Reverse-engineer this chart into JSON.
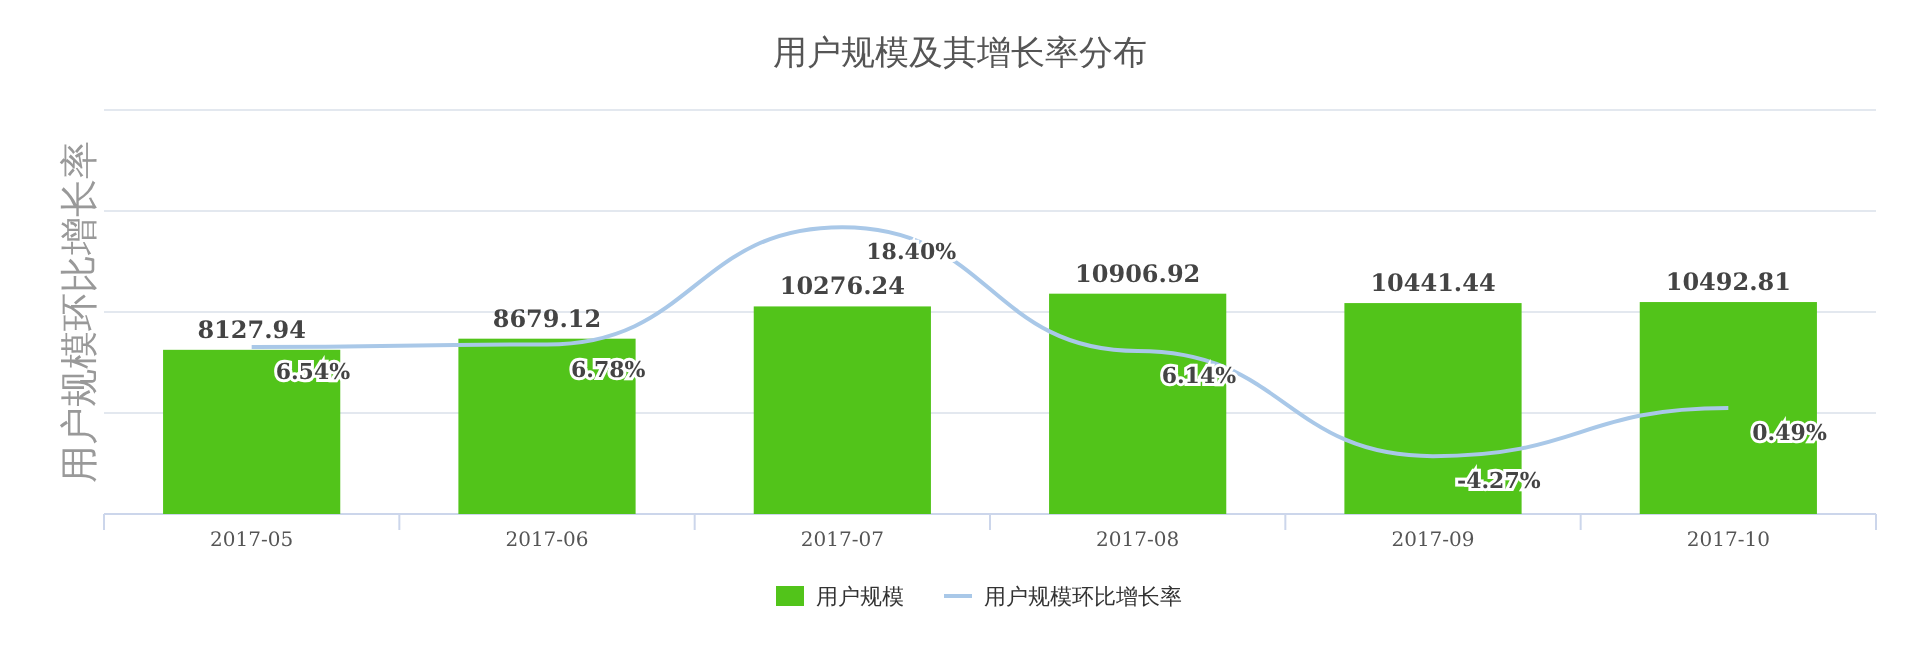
{
  "chart_data": {
    "type": "bar",
    "title": "用户规模及其增长率分布",
    "ylabel": "用户规模环比增长率",
    "categories": [
      "2017-05",
      "2017-06",
      "2017-07",
      "2017-08",
      "2017-09",
      "2017-10"
    ],
    "ylim": [
      0,
      20000
    ],
    "yticks": [
      {
        "value": 0,
        "label": null
      },
      {
        "value": 5000,
        "label": null
      },
      {
        "value": 10000,
        "label": null
      },
      {
        "value": 15000,
        "label": null
      },
      {
        "value": 20000,
        "label": null
      }
    ],
    "y2lim": [
      -10,
      30
    ],
    "tick_labels": "x",
    "grid": "y",
    "legend": "bottom",
    "data_labels": true,
    "series": [
      {
        "name": "用户规模",
        "color": "#52c41a",
        "values": [
          8127.94,
          8679.12,
          10276.24,
          10906.92,
          10441.44,
          10492.81
        ]
      },
      {
        "name": "用户规模环比增长率",
        "type": "line",
        "axis": "y2",
        "color": "#a9c8e8",
        "marker": "none",
        "values": [
          6.54,
          6.78,
          18.4,
          6.14,
          -4.27,
          0.49
        ],
        "value_labels": [
          "6.54%",
          "6.78%",
          "18.40%",
          "6.14%",
          "-4.27%",
          "0.49%"
        ]
      }
    ]
  }
}
